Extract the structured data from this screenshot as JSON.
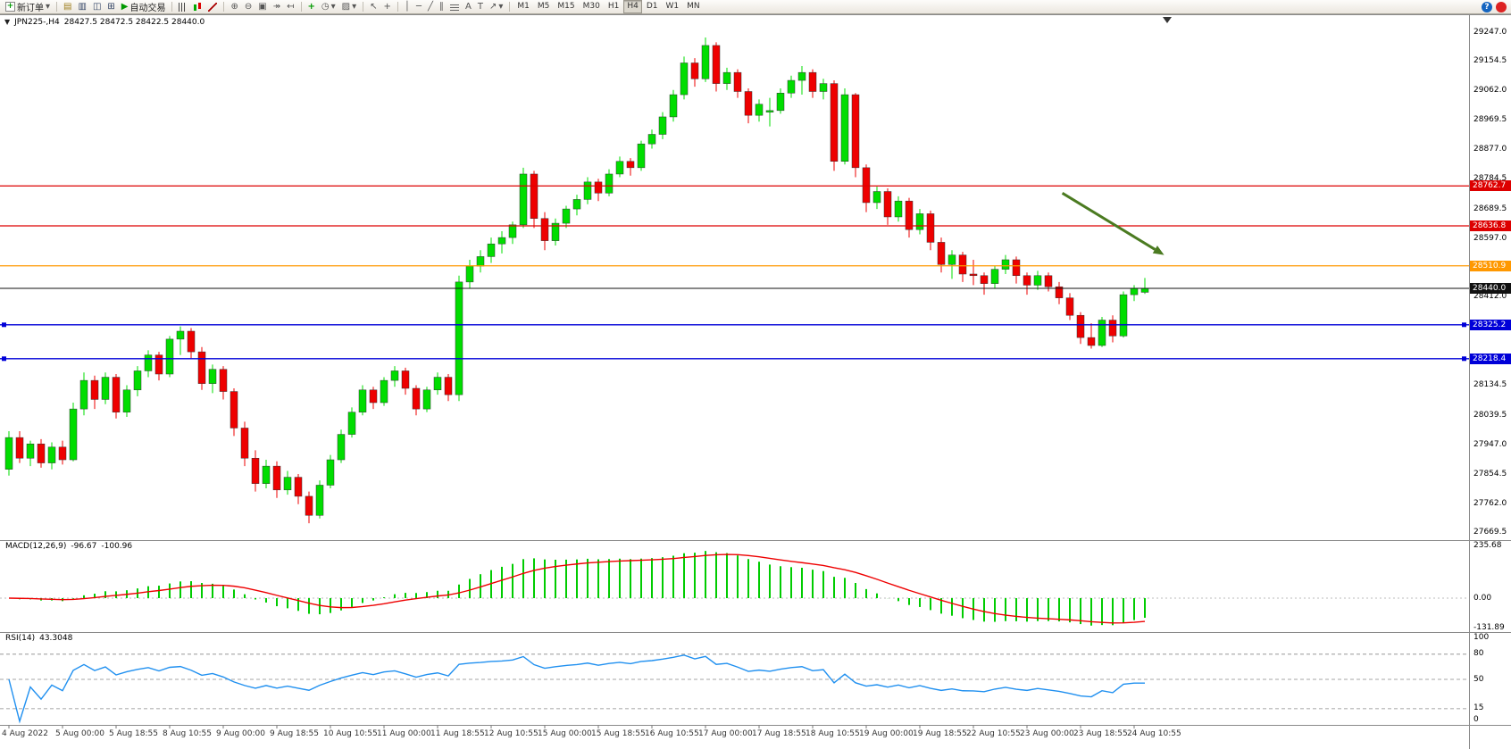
{
  "toolbar": {
    "new_order": "新订单",
    "autotrading": "自动交易",
    "timeframes": [
      "M1",
      "M5",
      "M15",
      "M30",
      "H1",
      "H4",
      "D1",
      "W1",
      "MN"
    ],
    "active_timeframe": "H4",
    "help": "?",
    "icon_names": [
      "new-order-icon",
      "chevron-down-icon",
      "chart-window-icon",
      "profiles-icon",
      "market-watch-icon",
      "navigator-icon",
      "play-icon",
      "bar-chart-icon",
      "candlestick-icon",
      "line-chart-icon",
      "zoom-in-icon",
      "zoom-out-icon",
      "tile-windows-icon",
      "auto-scroll-icon",
      "chart-shift-icon",
      "indicators-icon",
      "clock-icon",
      "templates-icon",
      "cursor-icon",
      "crosshair-icon",
      "vertical-line-icon",
      "horizontal-line-icon",
      "trendline-icon",
      "channel-icon",
      "fibonacci-icon",
      "text-icon",
      "label-icon",
      "arrow-object-icon",
      "help-icon",
      "alert-icon"
    ]
  },
  "chart": {
    "symbol": "JPN225-,H4",
    "ohlc": "28427.5 28472.5 28422.5 28440.0"
  },
  "chart_data": {
    "type": "candlestick",
    "title": "JPN225-,H4",
    "open": 28427.5,
    "high": 28472.5,
    "low": 28422.5,
    "close": 28440.0,
    "up_color": "#00dd00",
    "down_color": "#ee0000",
    "price_labels": [
      "29247.0",
      "29154.5",
      "29062.0",
      "28969.5",
      "28877.0",
      "28784.5",
      "28689.5",
      "28597.0",
      "28412.0",
      "28134.5",
      "28039.5",
      "27947.0",
      "27854.5",
      "27762.0",
      "27669.5"
    ],
    "lines": [
      {
        "label": "28762.7",
        "price": 28762.7,
        "color": "#dd0000",
        "name": "resistance-line-1"
      },
      {
        "label": "28636.8",
        "price": 28636.8,
        "color": "#dd0000",
        "name": "resistance-line-2"
      },
      {
        "label": "28510.9",
        "price": 28510.9,
        "color": "#ff9800",
        "name": "resistance-line-3"
      },
      {
        "label": "28440.0",
        "price": 28440.0,
        "color": "#111111",
        "name": "current-price-line"
      },
      {
        "label": "28325.2",
        "price": 28325.2,
        "color": "#0000d8",
        "name": "support-line-1",
        "handles": true
      },
      {
        "label": "28218.4",
        "price": 28218.4,
        "color": "#0000d8",
        "name": "support-line-2",
        "handles": true
      }
    ],
    "time_labels": [
      "4 Aug 2022",
      "5 Aug 00:00",
      "5 Aug 18:55",
      "8 Aug 10:55",
      "9 Aug 00:00",
      "9 Aug 18:55",
      "10 Aug 10:55",
      "11 Aug 00:00",
      "11 Aug 18:55",
      "12 Aug 10:55",
      "15 Aug 00:00",
      "15 Aug 18:55",
      "16 Aug 10:55",
      "17 Aug 00:00",
      "17 Aug 18:55",
      "18 Aug 10:55",
      "19 Aug 00:00",
      "19 Aug 18:55",
      "22 Aug 10:55",
      "23 Aug 00:00",
      "23 Aug 18:55",
      "24 Aug 10:55"
    ],
    "candles": [
      [
        27870,
        27990,
        27850,
        27970
      ],
      [
        27970,
        27990,
        27890,
        27905
      ],
      [
        27905,
        27960,
        27880,
        27950
      ],
      [
        27950,
        27965,
        27875,
        27890
      ],
      [
        27890,
        27955,
        27870,
        27940
      ],
      [
        27940,
        27960,
        27885,
        27900
      ],
      [
        27900,
        28080,
        27895,
        28060
      ],
      [
        28060,
        28175,
        28040,
        28150
      ],
      [
        28150,
        28165,
        28060,
        28090
      ],
      [
        28090,
        28175,
        28075,
        28160
      ],
      [
        28160,
        28170,
        28030,
        28050
      ],
      [
        28050,
        28135,
        28035,
        28120
      ],
      [
        28120,
        28195,
        28100,
        28180
      ],
      [
        28180,
        28245,
        28160,
        28230
      ],
      [
        28230,
        28240,
        28150,
        28170
      ],
      [
        28170,
        28290,
        28160,
        28280
      ],
      [
        28280,
        28320,
        28230,
        28305
      ],
      [
        28305,
        28315,
        28220,
        28240
      ],
      [
        28240,
        28255,
        28120,
        28140
      ],
      [
        28140,
        28200,
        28110,
        28185
      ],
      [
        28185,
        28195,
        28090,
        28115
      ],
      [
        28115,
        28125,
        27975,
        28000
      ],
      [
        28000,
        28020,
        27880,
        27905
      ],
      [
        27905,
        27930,
        27800,
        27825
      ],
      [
        27825,
        27900,
        27810,
        27880
      ],
      [
        27880,
        27895,
        27780,
        27805
      ],
      [
        27805,
        27865,
        27790,
        27845
      ],
      [
        27845,
        27855,
        27760,
        27785
      ],
      [
        27785,
        27800,
        27700,
        27725
      ],
      [
        27725,
        27835,
        27715,
        27820
      ],
      [
        27820,
        27915,
        27810,
        27900
      ],
      [
        27900,
        27995,
        27890,
        27980
      ],
      [
        27980,
        28065,
        27970,
        28050
      ],
      [
        28050,
        28135,
        28040,
        28120
      ],
      [
        28120,
        28130,
        28060,
        28080
      ],
      [
        28080,
        28160,
        28070,
        28150
      ],
      [
        28150,
        28195,
        28130,
        28180
      ],
      [
        28180,
        28190,
        28105,
        28125
      ],
      [
        28125,
        28135,
        28040,
        28060
      ],
      [
        28060,
        28130,
        28050,
        28120
      ],
      [
        28120,
        28175,
        28105,
        28160
      ],
      [
        28160,
        28170,
        28085,
        28105
      ],
      [
        28105,
        28480,
        28085,
        28460
      ],
      [
        28460,
        28530,
        28440,
        28510
      ],
      [
        28510,
        28560,
        28490,
        28540
      ],
      [
        28540,
        28600,
        28520,
        28580
      ],
      [
        28580,
        28620,
        28550,
        28600
      ],
      [
        28600,
        28650,
        28580,
        28640
      ],
      [
        28640,
        28820,
        28630,
        28800
      ],
      [
        28800,
        28810,
        28630,
        28660
      ],
      [
        28660,
        28680,
        28560,
        28590
      ],
      [
        28590,
        28660,
        28575,
        28645
      ],
      [
        28645,
        28700,
        28630,
        28690
      ],
      [
        28690,
        28735,
        28670,
        28720
      ],
      [
        28720,
        28790,
        28705,
        28775
      ],
      [
        28775,
        28785,
        28715,
        28740
      ],
      [
        28740,
        28815,
        28730,
        28800
      ],
      [
        28800,
        28855,
        28790,
        28840
      ],
      [
        28840,
        28850,
        28795,
        28820
      ],
      [
        28820,
        28905,
        28810,
        28895
      ],
      [
        28895,
        28940,
        28880,
        28925
      ],
      [
        28925,
        28995,
        28910,
        28980
      ],
      [
        28980,
        29065,
        28965,
        29050
      ],
      [
        29050,
        29170,
        29035,
        29150
      ],
      [
        29150,
        29165,
        29075,
        29100
      ],
      [
        29100,
        29230,
        29090,
        29205
      ],
      [
        29205,
        29215,
        29060,
        29085
      ],
      [
        29085,
        29135,
        29065,
        29120
      ],
      [
        29120,
        29130,
        29040,
        29060
      ],
      [
        29060,
        29070,
        28960,
        28985
      ],
      [
        28985,
        29035,
        28965,
        29020
      ],
      [
        28995,
        29040,
        28950,
        29000
      ],
      [
        29000,
        29070,
        28990,
        29055
      ],
      [
        29055,
        29110,
        29040,
        29095
      ],
      [
        29095,
        29140,
        29050,
        29120
      ],
      [
        29120,
        29130,
        29040,
        29060
      ],
      [
        29060,
        29100,
        29035,
        29085
      ],
      [
        29085,
        29095,
        28810,
        28840
      ],
      [
        28840,
        29070,
        28830,
        29050
      ],
      [
        29050,
        29055,
        28790,
        28820
      ],
      [
        28820,
        28830,
        28680,
        28710
      ],
      [
        28710,
        28760,
        28690,
        28745
      ],
      [
        28745,
        28755,
        28640,
        28665
      ],
      [
        28665,
        28730,
        28650,
        28715
      ],
      [
        28715,
        28725,
        28600,
        28625
      ],
      [
        28625,
        28690,
        28610,
        28675
      ],
      [
        28675,
        28685,
        28560,
        28585
      ],
      [
        28585,
        28600,
        28490,
        28515
      ],
      [
        28515,
        28560,
        28470,
        28545
      ],
      [
        28545,
        28555,
        28460,
        28485
      ],
      [
        28485,
        28530,
        28450,
        28480
      ],
      [
        28480,
        28490,
        28420,
        28455
      ],
      [
        28455,
        28510,
        28440,
        28500
      ],
      [
        28500,
        28545,
        28485,
        28530
      ],
      [
        28530,
        28540,
        28455,
        28480
      ],
      [
        28480,
        28490,
        28420,
        28450
      ],
      [
        28450,
        28495,
        28435,
        28480
      ],
      [
        28480,
        28490,
        28430,
        28445
      ],
      [
        28445,
        28460,
        28390,
        28410
      ],
      [
        28410,
        28425,
        28340,
        28355
      ],
      [
        28355,
        28365,
        28265,
        28285
      ],
      [
        28285,
        28330,
        28250,
        28260
      ],
      [
        28260,
        28350,
        28255,
        28340
      ],
      [
        28340,
        28355,
        28270,
        28290
      ],
      [
        28290,
        28430,
        28285,
        28420
      ],
      [
        28420,
        28450,
        28400,
        28440
      ],
      [
        28427.5,
        28472.5,
        28422.5,
        28440.0
      ]
    ],
    "macd": {
      "label": "MACD(12,26,9)",
      "value_main": "-96.67",
      "value_signal": "-100.96",
      "fast": 12,
      "slow": 26,
      "signal": 9,
      "axis_labels": [
        "235.68",
        "0.00",
        "-131.89"
      ],
      "histogram_color": "#00cc00",
      "signal_color": "#ee0000"
    },
    "rsi": {
      "label": "RSI(14)",
      "value": "43.3048",
      "period": 14,
      "axis_labels": [
        "100",
        "80",
        "50",
        "15",
        "0"
      ],
      "levels": [
        80,
        50,
        15
      ],
      "line_color": "#2090f0"
    },
    "annotation_arrow": {
      "x1_bar": 98.3,
      "y1_price": 28740,
      "x2_bar": 107.8,
      "y2_price": 28545,
      "color": "#4b7b21"
    }
  }
}
